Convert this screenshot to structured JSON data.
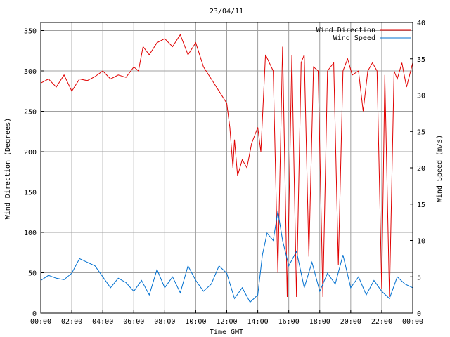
{
  "chart_data": {
    "type": "line",
    "title": "23/04/11",
    "xlabel": "Time GMT",
    "ylabel": "Wind Direction (Degrees)",
    "y2label": "Wind Speed (m/s)",
    "xlim": [
      0,
      24
    ],
    "ylim": [
      0,
      360
    ],
    "y2lim": [
      0,
      40
    ],
    "grid": true,
    "legend_position": "top-right",
    "x_ticks": [
      {
        "value": 0,
        "label": "00:00"
      },
      {
        "value": 2,
        "label": "02:00"
      },
      {
        "value": 4,
        "label": "04:00"
      },
      {
        "value": 6,
        "label": "06:00"
      },
      {
        "value": 8,
        "label": "08:00"
      },
      {
        "value": 10,
        "label": "10:00"
      },
      {
        "value": 12,
        "label": "12:00"
      },
      {
        "value": 14,
        "label": "14:00"
      },
      {
        "value": 16,
        "label": "16:00"
      },
      {
        "value": 18,
        "label": "18:00"
      },
      {
        "value": 20,
        "label": "20:00"
      },
      {
        "value": 22,
        "label": "22:00"
      },
      {
        "value": 24,
        "label": "00:00"
      }
    ],
    "y_ticks": [
      {
        "value": 0,
        "label": "0"
      },
      {
        "value": 50,
        "label": "50"
      },
      {
        "value": 100,
        "label": "100"
      },
      {
        "value": 150,
        "label": "150"
      },
      {
        "value": 200,
        "label": "200"
      },
      {
        "value": 250,
        "label": "250"
      },
      {
        "value": 300,
        "label": "300"
      },
      {
        "value": 350,
        "label": "350"
      }
    ],
    "y2_ticks": [
      {
        "value": 0,
        "label": "0"
      },
      {
        "value": 5,
        "label": "5"
      },
      {
        "value": 10,
        "label": "10"
      },
      {
        "value": 15,
        "label": "15"
      },
      {
        "value": 20,
        "label": "20"
      },
      {
        "value": 25,
        "label": "25"
      },
      {
        "value": 30,
        "label": "30"
      },
      {
        "value": 35,
        "label": "35"
      },
      {
        "value": 40,
        "label": "40"
      }
    ],
    "series": [
      {
        "name": "Wind Direction",
        "axis": "left",
        "color": "#e00000",
        "x": [
          0,
          0.5,
          1,
          1.5,
          2,
          2.5,
          3,
          3.5,
          4,
          4.5,
          5,
          5.5,
          6,
          6.3,
          6.6,
          7,
          7.5,
          8,
          8.5,
          9,
          9.5,
          10,
          10.5,
          11,
          11.5,
          12,
          12.2,
          12.4,
          12.5,
          12.7,
          13,
          13.3,
          13.6,
          14,
          14.2,
          14.5,
          15,
          15.3,
          15.6,
          15.9,
          16.2,
          16.5,
          16.8,
          17,
          17.3,
          17.6,
          17.9,
          18.2,
          18.5,
          18.9,
          19.2,
          19.5,
          19.8,
          20.1,
          20.5,
          20.8,
          21.1,
          21.4,
          21.7,
          22,
          22.2,
          22.5,
          22.8,
          23,
          23.3,
          23.6,
          24
        ],
        "values": [
          285,
          290,
          280,
          295,
          275,
          290,
          288,
          293,
          300,
          290,
          295,
          292,
          305,
          300,
          330,
          320,
          335,
          340,
          330,
          345,
          320,
          335,
          305,
          290,
          275,
          260,
          230,
          180,
          215,
          170,
          190,
          180,
          210,
          230,
          200,
          320,
          300,
          50,
          330,
          20,
          320,
          20,
          310,
          320,
          70,
          305,
          300,
          20,
          300,
          310,
          60,
          300,
          315,
          295,
          300,
          250,
          300,
          310,
          300,
          30,
          295,
          20,
          300,
          290,
          310,
          280,
          310
        ]
      },
      {
        "name": "Wind Speed",
        "axis": "right",
        "color": "#0070d0",
        "x": [
          0,
          0.5,
          1,
          1.5,
          2,
          2.5,
          3,
          3.5,
          4,
          4.5,
          5,
          5.5,
          6,
          6.5,
          7,
          7.5,
          8,
          8.5,
          9,
          9.5,
          10,
          10.5,
          11,
          11.5,
          12,
          12.5,
          13,
          13.5,
          14,
          14.3,
          14.6,
          15,
          15.3,
          15.6,
          16,
          16.5,
          17,
          17.5,
          18,
          18.5,
          19,
          19.5,
          20,
          20.5,
          21,
          21.5,
          22,
          22.5,
          23,
          23.5,
          24
        ],
        "values": [
          4.5,
          5.2,
          4.8,
          4.6,
          5.5,
          7.5,
          7.0,
          6.5,
          5.0,
          3.5,
          4.8,
          4.2,
          3.0,
          4.5,
          2.5,
          6.0,
          3.5,
          5.0,
          2.8,
          6.5,
          4.5,
          3.0,
          4.0,
          6.5,
          5.5,
          2.0,
          3.5,
          1.5,
          2.5,
          8.0,
          11.0,
          10.0,
          14.0,
          10.0,
          6.5,
          8.5,
          3.5,
          7.0,
          3.0,
          5.5,
          4.0,
          8.0,
          3.5,
          5.0,
          2.5,
          4.5,
          3.0,
          2.0,
          5.0,
          4.0,
          3.5
        ]
      }
    ]
  }
}
